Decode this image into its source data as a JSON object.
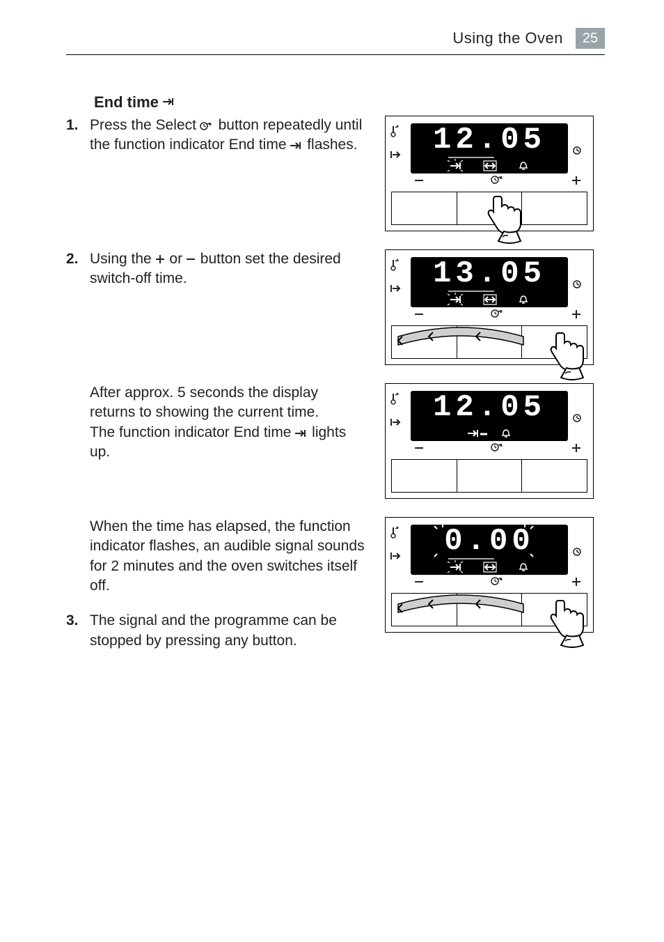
{
  "header": {
    "title": "Using the Oven",
    "page": "25",
    "badge_bg": "#9aa3a7"
  },
  "section": {
    "title_text": "End time",
    "title_icon": "end-time-arrow"
  },
  "steps": {
    "s1": {
      "num": "1.",
      "text_a": "Press the Select ",
      "text_b": " button repeatedly until the function indicator End time ",
      "text_c": " flashes."
    },
    "s2": {
      "num": "2.",
      "text_a": "Using the ",
      "text_b": "or ",
      "text_c": "button set the desired switch-off time."
    },
    "p1": {
      "text_a": "After approx. 5 seconds the display returns to showing the current time.",
      "text_b": "The function indicator End time ",
      "text_c": " lights up."
    },
    "p2": {
      "text": "When the time has elapsed, the function indicator flashes, an audible signal sounds for 2 minutes and the oven switches itself off."
    },
    "s3": {
      "num": "3.",
      "text": "The signal and the programme can be stopped by pressing any button."
    }
  },
  "panels": {
    "p1": {
      "digits": "12.05",
      "lcd_mode": "sel-endtime-blink",
      "show_hand": true,
      "hand_style": "press-center",
      "show_swipe": false
    },
    "p2": {
      "digits": "13.05",
      "lcd_mode": "sel-endtime-blink",
      "show_hand": true,
      "hand_style": "swipe",
      "show_swipe": true
    },
    "p3": {
      "digits": "12.05",
      "lcd_mode": "endtime-lit",
      "show_hand": false,
      "hand_style": "none",
      "show_swipe": false
    },
    "p4": {
      "digits": "0.00",
      "lcd_mode": "flash-all",
      "show_hand": true,
      "hand_style": "swipe",
      "show_swipe": true
    }
  },
  "colors": {
    "black": "#000000",
    "grey": "#bfbfbf"
  }
}
